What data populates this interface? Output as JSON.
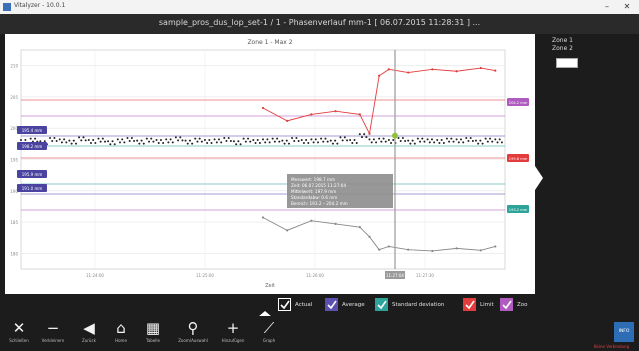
{
  "window": {
    "app_title": "Vitalyzer - 10.0.1",
    "minimize_label": "–",
    "close_label": "✕"
  },
  "header": {
    "title": "sample_pros_dus_lop_set-1 / 1 - Phasenverlauf mm-1 [ 06.07.2015 11:28:31 ] ..."
  },
  "plot": {
    "title": "Zone 1 - Max 2",
    "left_tags": [
      "195.4 mm",
      "198.2 mm",
      "195.9 mm",
      "191.0 mm"
    ],
    "right_tags": [
      "204.2 mm",
      "199.8 mm",
      "193.2 mm"
    ],
    "cursor_label": "11:27:04",
    "tooltip": [
      "Messwert: 198.7 mm",
      "Zeit: 06.07.2015 11:27:04",
      "Mittelwert: 197.9 mm",
      "Standardabw: 0.6 mm",
      "Bereich: 193.2 – 204.2 mm"
    ],
    "x_ticks": [
      "11:24:00",
      "11:25:00",
      "11:26:00",
      "11:27:30"
    ],
    "x_axis_label": "Zeit",
    "y_ticks": [
      "210",
      "205",
      "200",
      "195",
      "190",
      "185",
      "180"
    ]
  },
  "right_panel": {
    "zone_labels": [
      "Zone 1",
      "Zone 2"
    ]
  },
  "legend": [
    {
      "label": "Actual",
      "color": "#ffffff"
    },
    {
      "label": "Average",
      "color": "#5b4fb0"
    },
    {
      "label": "Standard deviation",
      "color": "#2ea39a"
    },
    {
      "label": "Limit",
      "color": "#e23c3c"
    },
    {
      "label": "Zoo",
      "color": "#b05bc0"
    }
  ],
  "toolbar": {
    "items": [
      {
        "icon": "close-icon",
        "glyph": "✕",
        "label": "Schließen"
      },
      {
        "icon": "minus-icon",
        "glyph": "−",
        "label": "Verkleinern"
      },
      {
        "icon": "back-icon",
        "glyph": "◀",
        "label": "Zurück"
      },
      {
        "icon": "home-icon",
        "glyph": "⌂",
        "label": "Home"
      },
      {
        "icon": "table-icon",
        "glyph": "▦",
        "label": "Tabelle"
      },
      {
        "icon": "search-icon",
        "glyph": "⚲",
        "label": "Zoom/Auswahl"
      },
      {
        "icon": "plus-icon",
        "glyph": "+",
        "label": "Hinzufügen"
      },
      {
        "icon": "chart-icon",
        "glyph": "⟋",
        "label": "Graph"
      }
    ],
    "brand_label": "INFO",
    "status_text": "Keine Verbindung"
  },
  "colors": {
    "limit": "#e23c3c",
    "average": "#5b4fb0",
    "stddev": "#2ea39a",
    "zoo": "#b05bc0",
    "actual": "#222222"
  },
  "chart_data": {
    "type": "scatter",
    "series": [
      {
        "name": "Actual",
        "x": [
          0,
          2,
          4,
          6,
          8,
          10,
          12,
          14,
          16,
          18,
          20,
          22,
          24,
          26,
          28,
          30,
          32,
          34,
          36,
          38,
          40,
          42,
          44,
          46,
          48,
          50,
          52,
          54,
          56,
          58,
          60,
          62,
          64,
          66,
          68,
          70,
          72,
          74,
          76,
          78,
          80,
          82,
          84,
          86,
          88,
          90,
          92,
          94,
          96,
          98
        ],
        "y": [
          197.8,
          198.0,
          197.6,
          198.1,
          197.9,
          197.7,
          198.2,
          197.8,
          198.0,
          197.6,
          197.9,
          198.1,
          197.7,
          198.0,
          197.8,
          197.9,
          198.2,
          197.7,
          198.0,
          197.8,
          197.9,
          198.1,
          197.6,
          198.0,
          197.8,
          197.9,
          198.0,
          197.7,
          198.1,
          197.8,
          197.9,
          198.0,
          197.7,
          198.2,
          197.8,
          198.7,
          197.9,
          198.0,
          197.8,
          198.1,
          197.7,
          198.0,
          197.9,
          197.8,
          198.0,
          197.9,
          198.1,
          197.7,
          198.0,
          197.9
        ]
      },
      {
        "name": "Limit",
        "x": [
          50,
          55,
          60,
          65,
          70,
          72,
          74,
          76,
          80,
          85,
          90,
          95,
          98
        ],
        "y": [
          203,
          201,
          202,
          202.5,
          202,
          199,
          208,
          209,
          208.5,
          209,
          208.7,
          209.2,
          208.8
        ]
      },
      {
        "name": "Average",
        "x": [
          50,
          55,
          60,
          65,
          70,
          72,
          74,
          76,
          80,
          85,
          90,
          95,
          98
        ],
        "y": [
          186,
          184,
          185.5,
          185,
          184.5,
          183,
          181,
          181.5,
          181,
          180.8,
          181.2,
          180.9,
          181.5
        ]
      }
    ],
    "ylim": [
      178,
      212
    ],
    "xlim": [
      0,
      100
    ]
  }
}
